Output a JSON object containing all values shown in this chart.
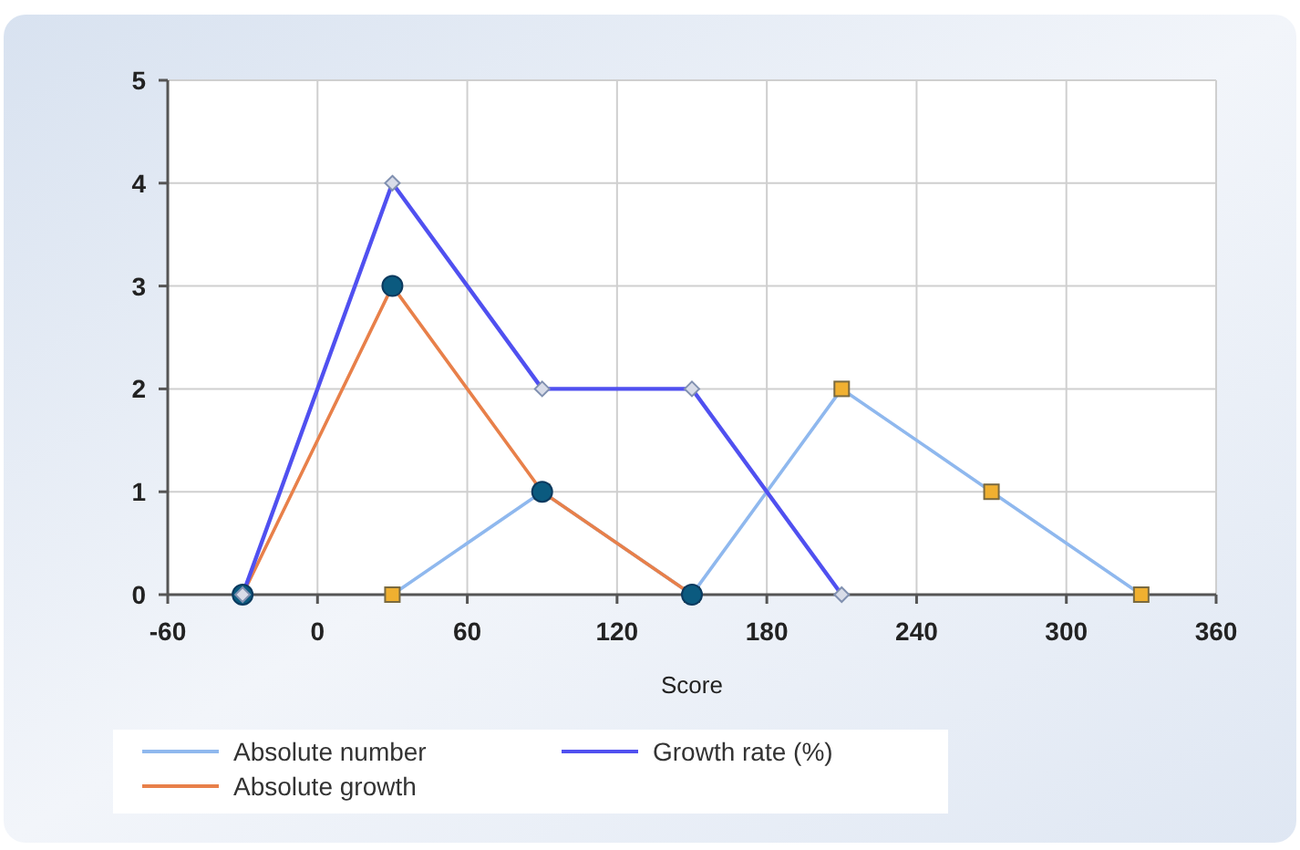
{
  "chart_data": {
    "type": "line",
    "xlabel": "Score",
    "xlim": [
      -60,
      360
    ],
    "xticks": [
      -60,
      0,
      60,
      120,
      180,
      240,
      300,
      360
    ],
    "ylim": [
      0,
      5
    ],
    "yticks": [
      0,
      1,
      2,
      3,
      4,
      5
    ],
    "grid": true,
    "legend": "bottom",
    "series": [
      {
        "name": "Absolute number",
        "color": "#8fb8ee",
        "marker": "square",
        "x": [
          30,
          90,
          150,
          210,
          270,
          330
        ],
        "values": [
          0,
          1,
          0,
          2,
          1,
          0
        ]
      },
      {
        "name": "Absolute growth",
        "color": "#e8804a",
        "marker": "circle",
        "x": [
          -30,
          30,
          90,
          150
        ],
        "values": [
          0,
          3,
          1,
          0
        ]
      },
      {
        "name": "Growth rate (%)",
        "color": "#5050f0",
        "marker": "diamond",
        "x": [
          -30,
          30,
          90,
          150,
          210
        ],
        "values": [
          0,
          4,
          2,
          2,
          0
        ]
      }
    ]
  }
}
